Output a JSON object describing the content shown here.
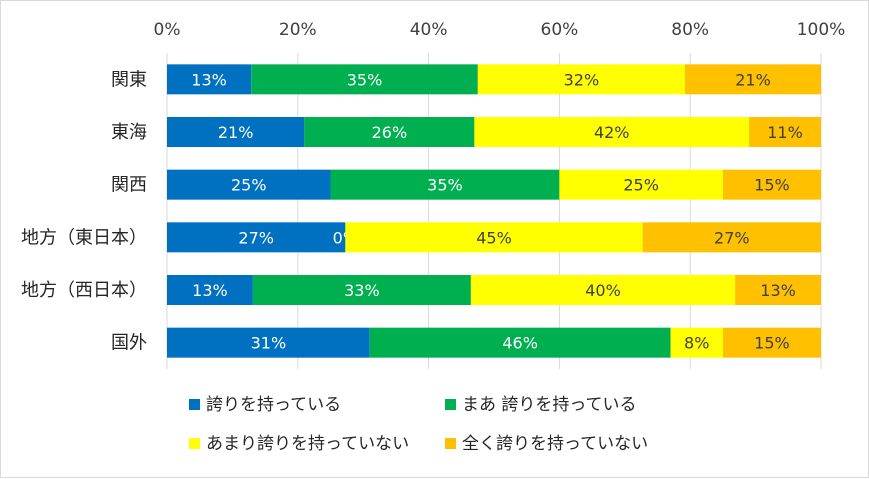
{
  "chart_data": {
    "type": "bar",
    "orientation": "horizontal",
    "stacked": "percent",
    "categories": [
      "関東",
      "東海",
      "関西",
      "地方（東日本）",
      "地方（西日本）",
      "国外"
    ],
    "series": [
      {
        "name": "誇りを持っている",
        "color": "#0070C0",
        "values": [
          13,
          21,
          25,
          27,
          13,
          31
        ],
        "labels": [
          "13%",
          "21%",
          "25%",
          "27%",
          "13%",
          "31%"
        ]
      },
      {
        "name": "まあ 誇りを持っている",
        "color": "#00B050",
        "values": [
          35,
          26,
          35,
          0,
          33,
          46
        ],
        "labels": [
          "35%",
          "26%",
          "35%",
          "0%",
          "33%",
          "46%"
        ]
      },
      {
        "name": "あまり誇りを持っていない",
        "color": "#FFFF00",
        "values": [
          32,
          42,
          25,
          45,
          40,
          8
        ],
        "labels": [
          "32%",
          "42%",
          "25%",
          "45%",
          "40%",
          "8%"
        ]
      },
      {
        "name": "全く誇りを持っていない",
        "color": "#FFC000",
        "values": [
          21,
          11,
          15,
          27,
          13,
          15
        ],
        "labels": [
          "21%",
          "11%",
          "15%",
          "27%",
          "13%",
          "15%"
        ]
      }
    ],
    "xlim": [
      0,
      100
    ],
    "xticks": [
      "0%",
      "20%",
      "40%",
      "60%",
      "80%",
      "100%"
    ],
    "gridlines": true,
    "legend_position": "bottom"
  }
}
